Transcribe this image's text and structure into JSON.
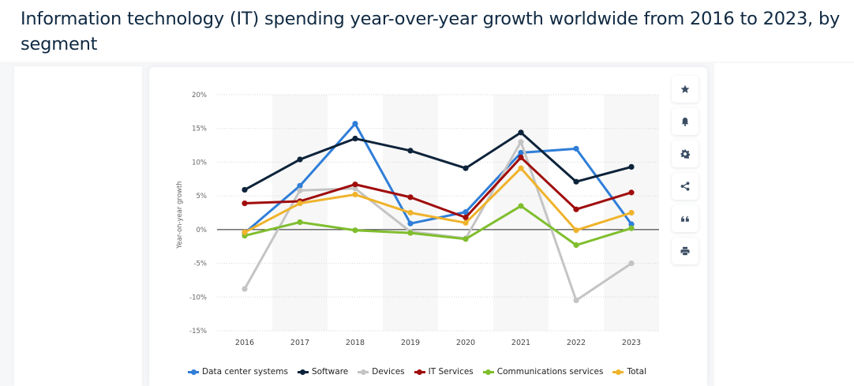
{
  "page": {
    "title": "Information technology (IT) spending year-over-year growth worldwide from 2016 to 2023, by segment"
  },
  "toolbar": {
    "buttons": [
      {
        "icon": "star-icon",
        "label": "Favorite"
      },
      {
        "icon": "bell-icon",
        "label": "Notifications"
      },
      {
        "icon": "gear-icon",
        "label": "Settings"
      },
      {
        "icon": "share-icon",
        "label": "Share"
      },
      {
        "icon": "quote-icon",
        "label": "Cite"
      },
      {
        "icon": "print-icon",
        "label": "Print"
      }
    ]
  },
  "chart_data": {
    "type": "line",
    "title": "Information technology (IT) spending year-over-year growth worldwide from 2016 to 2023, by segment",
    "xlabel": "",
    "ylabel": "Year-on-year growth",
    "categories": [
      "2016",
      "2017",
      "2018",
      "2019",
      "2020",
      "2021",
      "2022",
      "2023"
    ],
    "ylim": [
      -15,
      20
    ],
    "yticks": [
      20,
      15,
      10,
      5,
      0,
      -5,
      -10,
      -15
    ],
    "ytick_labels": [
      "20%",
      "15%",
      "10%",
      "5%",
      "0%",
      "-5%",
      "-10%",
      "-15%"
    ],
    "grid": true,
    "legend_position": "bottom",
    "series": [
      {
        "name": "Data center systems",
        "color": "#2f7ed8",
        "values": [
          -0.5,
          6.5,
          15.7,
          0.9,
          2.6,
          11.4,
          12.0,
          0.8
        ]
      },
      {
        "name": "Software",
        "color": "#0d233a",
        "values": [
          5.9,
          10.4,
          13.5,
          11.7,
          9.1,
          14.4,
          7.1,
          9.3
        ]
      },
      {
        "name": "Devices",
        "color": "#c4c4c4",
        "values": [
          -8.8,
          5.8,
          6.1,
          -0.3,
          -1.3,
          13.0,
          -10.5,
          -5.0
        ]
      },
      {
        "name": "IT Services",
        "color": "#a00c0c",
        "values": [
          3.9,
          4.2,
          6.7,
          4.8,
          1.8,
          10.7,
          3.0,
          5.5
        ]
      },
      {
        "name": "Communications services",
        "color": "#80be2e",
        "values": [
          -0.9,
          1.1,
          -0.1,
          -0.5,
          -1.4,
          3.5,
          -2.3,
          0.2
        ]
      },
      {
        "name": "Total",
        "color": "#efb32c",
        "values": [
          -0.4,
          3.9,
          5.2,
          2.5,
          1.0,
          9.1,
          -0.1,
          2.5
        ]
      }
    ]
  }
}
